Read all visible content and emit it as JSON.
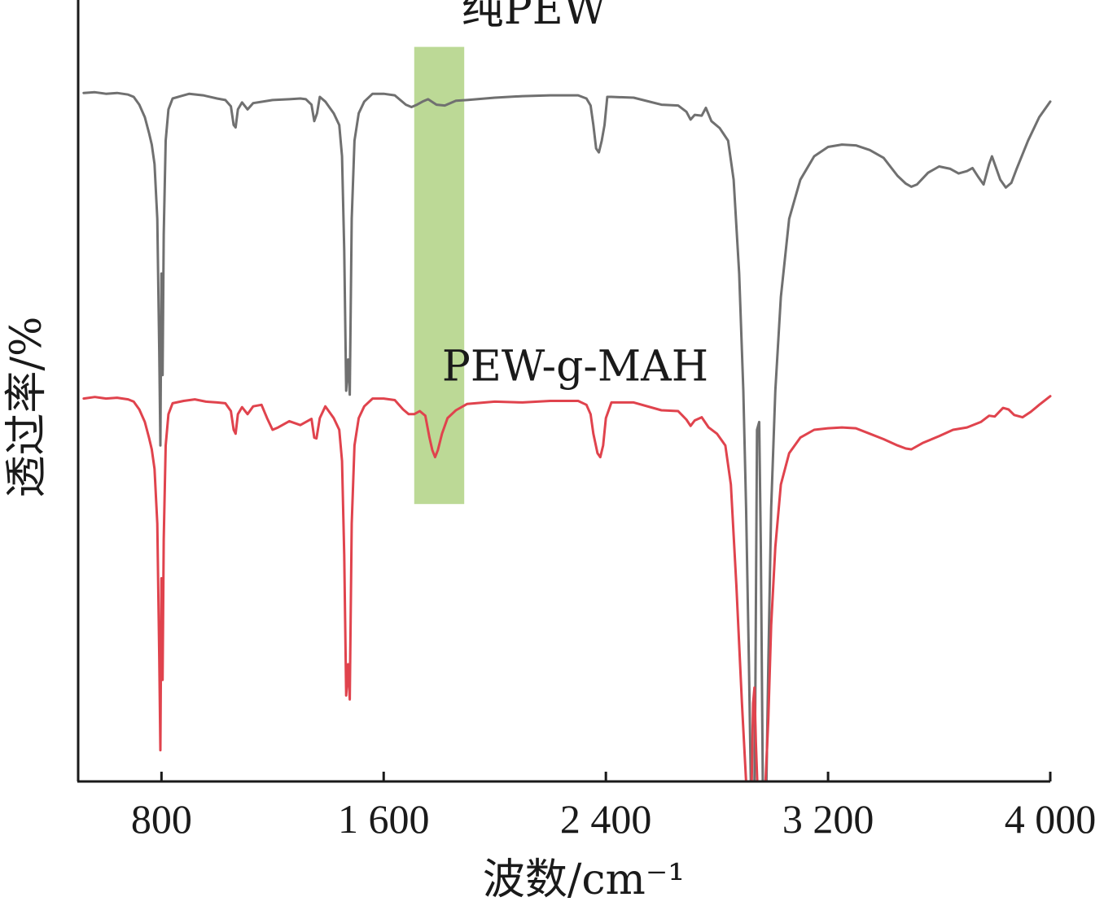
{
  "chart_data": {
    "type": "line",
    "xlabel": "波数/cm⁻¹",
    "ylabel": "透过率/%",
    "xlim": [
      500,
      4000
    ],
    "ylim": [
      0,
      100
    ],
    "y_ticks_shown": false,
    "grid": false,
    "xticks": [
      {
        "value": 800,
        "label": "800"
      },
      {
        "value": 1600,
        "label": "1 600"
      },
      {
        "value": 2400,
        "label": "2 400"
      },
      {
        "value": 3200,
        "label": "3 200"
      },
      {
        "value": 4000,
        "label": "4 000"
      }
    ],
    "highlight_band": {
      "x": [
        1710,
        1890
      ],
      "y": [
        35.5,
        94
      ],
      "color": "#bcd996"
    },
    "series": [
      {
        "name": "纯PEW",
        "color": "#707070",
        "label_x": 1880,
        "label_y": 97,
        "points": [
          [
            520,
            88.1
          ],
          [
            560,
            88.2
          ],
          [
            600,
            88.0
          ],
          [
            640,
            88.1
          ],
          [
            680,
            87.9
          ],
          [
            700,
            87.6
          ],
          [
            720,
            86.6
          ],
          [
            740,
            85.0
          ],
          [
            755,
            83.0
          ],
          [
            765,
            81.5
          ],
          [
            775,
            79.0
          ],
          [
            785,
            72.0
          ],
          [
            792,
            55.0
          ],
          [
            796,
            43.0
          ],
          [
            800,
            65.0
          ],
          [
            804,
            52.0
          ],
          [
            808,
            70.0
          ],
          [
            815,
            82.0
          ],
          [
            825,
            86.0
          ],
          [
            840,
            87.4
          ],
          [
            870,
            87.7
          ],
          [
            900,
            88.0
          ],
          [
            950,
            87.8
          ],
          [
            1000,
            87.4
          ],
          [
            1030,
            87.2
          ],
          [
            1050,
            86.4
          ],
          [
            1060,
            84.0
          ],
          [
            1067,
            83.7
          ],
          [
            1075,
            86.0
          ],
          [
            1090,
            86.9
          ],
          [
            1110,
            86.0
          ],
          [
            1130,
            86.8
          ],
          [
            1200,
            87.2
          ],
          [
            1260,
            87.3
          ],
          [
            1300,
            87.4
          ],
          [
            1320,
            87.3
          ],
          [
            1340,
            86.6
          ],
          [
            1350,
            84.5
          ],
          [
            1360,
            85.5
          ],
          [
            1370,
            87.6
          ],
          [
            1390,
            87.0
          ],
          [
            1420,
            85.5
          ],
          [
            1440,
            84.0
          ],
          [
            1450,
            80.0
          ],
          [
            1458,
            68.0
          ],
          [
            1465,
            50.0
          ],
          [
            1472,
            54.0
          ],
          [
            1478,
            49.5
          ],
          [
            1485,
            72.0
          ],
          [
            1495,
            82.0
          ],
          [
            1510,
            85.5
          ],
          [
            1530,
            87.0
          ],
          [
            1560,
            88.0
          ],
          [
            1600,
            88.0
          ],
          [
            1640,
            87.8
          ],
          [
            1680,
            86.6
          ],
          [
            1700,
            86.3
          ],
          [
            1720,
            86.6
          ],
          [
            1740,
            87.0
          ],
          [
            1760,
            87.3
          ],
          [
            1790,
            86.6
          ],
          [
            1820,
            86.5
          ],
          [
            1860,
            87.1
          ],
          [
            1900,
            87.2
          ],
          [
            2000,
            87.5
          ],
          [
            2100,
            87.7
          ],
          [
            2200,
            87.8
          ],
          [
            2300,
            87.8
          ],
          [
            2330,
            87.4
          ],
          [
            2345,
            86.5
          ],
          [
            2355,
            84.0
          ],
          [
            2365,
            81.0
          ],
          [
            2375,
            80.5
          ],
          [
            2385,
            82.0
          ],
          [
            2395,
            84.0
          ],
          [
            2405,
            87.6
          ],
          [
            2420,
            87.6
          ],
          [
            2500,
            87.5
          ],
          [
            2600,
            86.6
          ],
          [
            2660,
            86.5
          ],
          [
            2690,
            85.7
          ],
          [
            2705,
            84.7
          ],
          [
            2720,
            85.3
          ],
          [
            2745,
            85.2
          ],
          [
            2760,
            86.2
          ],
          [
            2780,
            84.5
          ],
          [
            2810,
            83.6
          ],
          [
            2840,
            82.0
          ],
          [
            2860,
            77.0
          ],
          [
            2880,
            65.0
          ],
          [
            2895,
            50.0
          ],
          [
            2905,
            35.0
          ],
          [
            2915,
            15.0
          ],
          [
            2922,
            0.0
          ],
          [
            2935,
            0.0
          ],
          [
            2938,
            10.0
          ],
          [
            2944,
            45.0
          ],
          [
            2952,
            46.0
          ],
          [
            2958,
            30.0
          ],
          [
            2965,
            0.0
          ],
          [
            2978,
            0.0
          ],
          [
            2985,
            15.0
          ],
          [
            2995,
            35.0
          ],
          [
            3010,
            50.0
          ],
          [
            3030,
            62.0
          ],
          [
            3060,
            72.0
          ],
          [
            3100,
            77.0
          ],
          [
            3150,
            80.0
          ],
          [
            3200,
            81.2
          ],
          [
            3250,
            81.5
          ],
          [
            3300,
            81.4
          ],
          [
            3350,
            80.8
          ],
          [
            3400,
            79.8
          ],
          [
            3450,
            77.5
          ],
          [
            3480,
            76.5
          ],
          [
            3500,
            76.1
          ],
          [
            3520,
            76.4
          ],
          [
            3560,
            77.9
          ],
          [
            3600,
            78.7
          ],
          [
            3640,
            78.4
          ],
          [
            3670,
            77.8
          ],
          [
            3700,
            78.1
          ],
          [
            3720,
            78.5
          ],
          [
            3740,
            77.4
          ],
          [
            3760,
            76.4
          ],
          [
            3780,
            79.0
          ],
          [
            3790,
            80.0
          ],
          [
            3820,
            77.0
          ],
          [
            3840,
            76.0
          ],
          [
            3860,
            76.6
          ],
          [
            3880,
            78.5
          ],
          [
            3920,
            82.0
          ],
          [
            3960,
            85.0
          ],
          [
            4000,
            87.0
          ]
        ]
      },
      {
        "name": "PEW-g-MAH",
        "color": "#e0434d",
        "label_x": 1810,
        "label_y": 51.3,
        "points": [
          [
            520,
            49.0
          ],
          [
            560,
            49.2
          ],
          [
            600,
            49.0
          ],
          [
            640,
            49.1
          ],
          [
            660,
            49.0
          ],
          [
            680,
            48.9
          ],
          [
            700,
            48.6
          ],
          [
            720,
            47.6
          ],
          [
            740,
            46.0
          ],
          [
            755,
            44.0
          ],
          [
            765,
            42.5
          ],
          [
            775,
            40.0
          ],
          [
            785,
            33.0
          ],
          [
            792,
            16.0
          ],
          [
            796,
            4.0
          ],
          [
            800,
            26.0
          ],
          [
            804,
            13.0
          ],
          [
            808,
            31.0
          ],
          [
            815,
            43.0
          ],
          [
            825,
            47.0
          ],
          [
            840,
            48.4
          ],
          [
            880,
            48.7
          ],
          [
            920,
            48.9
          ],
          [
            960,
            48.6
          ],
          [
            1000,
            48.5
          ],
          [
            1030,
            48.4
          ],
          [
            1050,
            47.4
          ],
          [
            1060,
            45.0
          ],
          [
            1067,
            44.5
          ],
          [
            1075,
            47.0
          ],
          [
            1090,
            47.9
          ],
          [
            1110,
            47.0
          ],
          [
            1130,
            48.0
          ],
          [
            1160,
            48.2
          ],
          [
            1180,
            46.5
          ],
          [
            1200,
            45.0
          ],
          [
            1220,
            45.3
          ],
          [
            1260,
            46.1
          ],
          [
            1300,
            45.6
          ],
          [
            1340,
            46.4
          ],
          [
            1350,
            44.0
          ],
          [
            1358,
            43.9
          ],
          [
            1370,
            46.5
          ],
          [
            1390,
            48.0
          ],
          [
            1420,
            46.5
          ],
          [
            1440,
            45.0
          ],
          [
            1450,
            41.0
          ],
          [
            1458,
            29.0
          ],
          [
            1465,
            11.0
          ],
          [
            1472,
            15.0
          ],
          [
            1478,
            10.5
          ],
          [
            1485,
            33.0
          ],
          [
            1495,
            43.0
          ],
          [
            1510,
            46.5
          ],
          [
            1530,
            48.0
          ],
          [
            1560,
            49.0
          ],
          [
            1600,
            49.0
          ],
          [
            1640,
            48.8
          ],
          [
            1670,
            47.6
          ],
          [
            1690,
            47.0
          ],
          [
            1710,
            47.0
          ],
          [
            1730,
            47.4
          ],
          [
            1750,
            46.8
          ],
          [
            1765,
            44.0
          ],
          [
            1775,
            42.4
          ],
          [
            1785,
            41.5
          ],
          [
            1795,
            42.4
          ],
          [
            1810,
            44.5
          ],
          [
            1830,
            46.5
          ],
          [
            1860,
            47.5
          ],
          [
            1900,
            48.3
          ],
          [
            2000,
            48.6
          ],
          [
            2100,
            48.5
          ],
          [
            2200,
            48.7
          ],
          [
            2300,
            48.7
          ],
          [
            2330,
            48.2
          ],
          [
            2345,
            47.0
          ],
          [
            2355,
            44.5
          ],
          [
            2370,
            42.0
          ],
          [
            2380,
            41.5
          ],
          [
            2390,
            43.0
          ],
          [
            2400,
            46.5
          ],
          [
            2420,
            48.5
          ],
          [
            2500,
            48.5
          ],
          [
            2600,
            47.5
          ],
          [
            2660,
            47.4
          ],
          [
            2690,
            46.3
          ],
          [
            2705,
            45.5
          ],
          [
            2720,
            46.2
          ],
          [
            2745,
            46.6
          ],
          [
            2770,
            45.3
          ],
          [
            2800,
            44.5
          ],
          [
            2830,
            43.0
          ],
          [
            2850,
            38.0
          ],
          [
            2870,
            25.0
          ],
          [
            2890,
            10.0
          ],
          [
            2905,
            0.0
          ],
          [
            2925,
            0.0
          ],
          [
            2930,
            10.0
          ],
          [
            2935,
            12.0
          ],
          [
            2940,
            5.0
          ],
          [
            2945,
            0.0
          ],
          [
            2975,
            0.0
          ],
          [
            2985,
            8.0
          ],
          [
            2995,
            20.0
          ],
          [
            3010,
            30.0
          ],
          [
            3030,
            38.0
          ],
          [
            3060,
            42.0
          ],
          [
            3100,
            44.0
          ],
          [
            3150,
            45.0
          ],
          [
            3200,
            45.2
          ],
          [
            3250,
            45.3
          ],
          [
            3300,
            45.2
          ],
          [
            3350,
            44.5
          ],
          [
            3400,
            43.8
          ],
          [
            3450,
            43.0
          ],
          [
            3480,
            42.6
          ],
          [
            3500,
            42.5
          ],
          [
            3540,
            43.3
          ],
          [
            3600,
            44.2
          ],
          [
            3650,
            45.0
          ],
          [
            3700,
            45.3
          ],
          [
            3750,
            46.0
          ],
          [
            3780,
            46.8
          ],
          [
            3800,
            46.7
          ],
          [
            3830,
            47.8
          ],
          [
            3850,
            47.6
          ],
          [
            3870,
            46.9
          ],
          [
            3900,
            46.6
          ],
          [
            3930,
            47.3
          ],
          [
            3960,
            48.2
          ],
          [
            4000,
            49.3
          ]
        ]
      }
    ]
  }
}
